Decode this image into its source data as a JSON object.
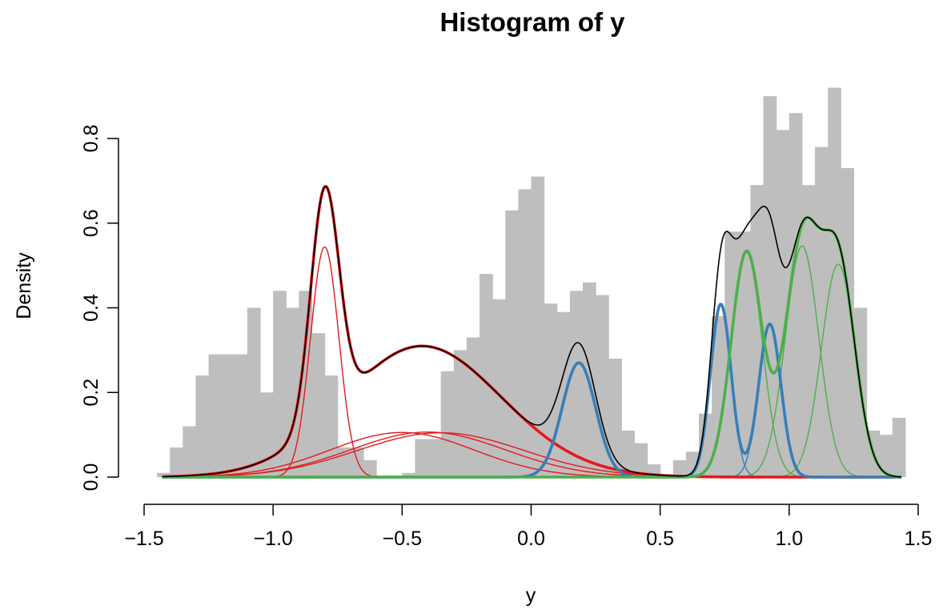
{
  "chart_data": {
    "type": "histogram",
    "title": "Histogram of y",
    "xlabel": "y",
    "ylabel": "Density",
    "xlim": [
      -1.5,
      1.5
    ],
    "ylim": [
      0,
      0.9
    ],
    "xticks": [
      "−1.5",
      "−1.0",
      "−0.5",
      "0.0",
      "0.5",
      "1.0",
      "1.5"
    ],
    "xtick_values": [
      -1.5,
      -1.0,
      -0.5,
      0.0,
      0.5,
      1.0,
      1.5
    ],
    "yticks": [
      "0.0",
      "0.2",
      "0.4",
      "0.6",
      "0.8"
    ],
    "ytick_values": [
      0.0,
      0.2,
      0.4,
      0.6,
      0.8
    ],
    "histogram": {
      "color": "#bebebe",
      "bin_width": 0.05,
      "bins_left": [
        -1.45,
        -1.4,
        -1.35,
        -1.3,
        -1.25,
        -1.2,
        -1.15,
        -1.1,
        -1.05,
        -1.0,
        -0.95,
        -0.9,
        -0.85,
        -0.8,
        -0.75,
        -0.7,
        -0.65,
        -0.6,
        -0.55,
        -0.5,
        -0.45,
        -0.4,
        -0.35,
        -0.3,
        -0.25,
        -0.2,
        -0.15,
        -0.1,
        -0.05,
        0.0,
        0.05,
        0.1,
        0.15,
        0.2,
        0.25,
        0.3,
        0.35,
        0.4,
        0.45,
        0.5,
        0.55,
        0.6,
        0.65,
        0.7,
        0.75,
        0.8,
        0.85,
        0.9,
        0.95,
        1.0,
        1.05,
        1.1,
        1.15,
        1.2,
        1.25,
        1.3,
        1.35,
        1.4
      ],
      "densities": [
        0.01,
        0.07,
        0.12,
        0.24,
        0.29,
        0.29,
        0.29,
        0.4,
        0.2,
        0.44,
        0.4,
        0.44,
        0.34,
        0.24,
        0.07,
        0.07,
        0.04,
        0,
        0,
        0.01,
        0.09,
        0.09,
        0.25,
        0.3,
        0.33,
        0.48,
        0.42,
        0.63,
        0.68,
        0.71,
        0.41,
        0.39,
        0.44,
        0.46,
        0.43,
        0.28,
        0.11,
        0.08,
        0.03,
        0,
        0.04,
        0.06,
        0.15,
        0.38,
        0.58,
        0.58,
        0.69,
        0.9,
        0.82,
        0.86,
        0.69,
        0.78,
        0.92,
        0.73,
        0.4,
        0.11,
        0.1,
        0.14
      ]
    },
    "components": [
      {
        "group": "red",
        "mean": -0.8,
        "sd": 0.055,
        "weight": 0.075
      },
      {
        "group": "red",
        "mean": -0.5,
        "sd": 0.28,
        "weight": 0.074
      },
      {
        "group": "red",
        "mean": -0.4,
        "sd": 0.3,
        "weight": 0.08
      },
      {
        "group": "red",
        "mean": -0.35,
        "sd": 0.32,
        "weight": 0.084
      },
      {
        "group": "blue",
        "mean": 0.185,
        "sd": 0.065,
        "weight": 0.044
      },
      {
        "group": "blue",
        "mean": 0.735,
        "sd": 0.04,
        "weight": 0.041
      },
      {
        "group": "blue",
        "mean": 0.925,
        "sd": 0.043,
        "weight": 0.039
      },
      {
        "group": "green",
        "mean": 0.835,
        "sd": 0.06,
        "weight": 0.08
      },
      {
        "group": "green",
        "mean": 1.05,
        "sd": 0.065,
        "weight": 0.089
      },
      {
        "group": "green",
        "mean": 1.19,
        "sd": 0.065,
        "weight": 0.082
      }
    ],
    "curves": [
      {
        "name": "red components",
        "color": "#e41a1c",
        "style": "thin"
      },
      {
        "name": "red mixture",
        "color": "#e41a1c",
        "style": "thick"
      },
      {
        "name": "blue components",
        "color": "#377eb8",
        "style": "thin"
      },
      {
        "name": "blue mixture",
        "color": "#377eb8",
        "style": "thick"
      },
      {
        "name": "green components",
        "color": "#4daf4a",
        "style": "thin"
      },
      {
        "name": "green mixture",
        "color": "#4daf4a",
        "style": "thick"
      },
      {
        "name": "overall mixture",
        "color": "#000000",
        "style": "thin"
      }
    ],
    "grid": false,
    "legend": "none"
  }
}
